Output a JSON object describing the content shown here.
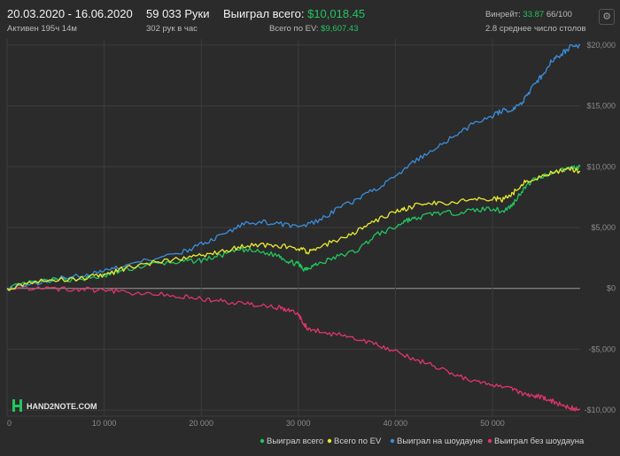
{
  "header": {
    "date_range": "20.03.2020 - 16.06.2020",
    "active_time": "Активен 195ч 14м",
    "hands": "59 033 Руки",
    "hands_per_hour": "302 рук в час",
    "won_label": "Выиграл всего:",
    "won_value": "$10,018.45",
    "ev_label": "Всего по EV:",
    "ev_value": "$9,607.43",
    "winrate_label": "Винрейт:",
    "winrate_value": "33.87",
    "winrate_rest": "66/100",
    "tables": "2.8 среднее число столов",
    "settings_icon": "gear-icon"
  },
  "logo": "HAND2NOTE.COM",
  "chart_data": {
    "type": "line",
    "x_ticks": [
      0,
      10000,
      20000,
      30000,
      40000,
      50000
    ],
    "x_tick_labels": [
      "0",
      "10 000",
      "20 000",
      "30 000",
      "40 000",
      "50 000"
    ],
    "xlim": [
      0,
      59033
    ],
    "ylim": [
      -10500,
      20500
    ],
    "y_ticks": [
      20000,
      15000,
      10000,
      5000,
      0,
      -5000,
      -10000
    ],
    "y_tick_labels": [
      "$20,000",
      "$15,000",
      "$10,000",
      "$5,000",
      "$0",
      "-$5,000",
      "-$10,000"
    ],
    "series": [
      {
        "name": "Выиграл всего",
        "color": "#22c55e",
        "x": [
          0,
          2000,
          5000,
          8000,
          10000,
          12000,
          15000,
          18000,
          20000,
          22000,
          24000,
          26000,
          28000,
          29000,
          30000,
          30500,
          31000,
          32000,
          34000,
          36000,
          38000,
          40000,
          41000,
          42000,
          44000,
          46000,
          48000,
          50000,
          51000,
          52000,
          53000,
          54000,
          56000,
          58000,
          59033
        ],
        "y": [
          0,
          400,
          700,
          800,
          1000,
          1500,
          2000,
          2200,
          2300,
          2700,
          3200,
          3000,
          2700,
          2200,
          2000,
          1600,
          1700,
          2000,
          2600,
          3100,
          4400,
          5000,
          5600,
          5700,
          6200,
          6200,
          6400,
          6600,
          6300,
          6800,
          8000,
          8800,
          9500,
          9900,
          10018
        ]
      },
      {
        "name": "Всего по EV",
        "color": "#eaea30",
        "x": [
          0,
          2000,
          5000,
          8000,
          10000,
          12000,
          15000,
          18000,
          20000,
          22000,
          24000,
          26000,
          28000,
          30000,
          31000,
          32000,
          34000,
          36000,
          38000,
          40000,
          41000,
          42000,
          44000,
          46000,
          48000,
          50000,
          51000,
          52000,
          53000,
          54000,
          56000,
          58000,
          59033
        ],
        "y": [
          0,
          450,
          700,
          850,
          1100,
          1600,
          2100,
          2500,
          2700,
          3000,
          3400,
          3600,
          3500,
          3300,
          3000,
          3300,
          4000,
          4700,
          5600,
          6300,
          6500,
          6800,
          7000,
          7100,
          7300,
          7400,
          7300,
          7700,
          8600,
          9000,
          9500,
          9800,
          9607
        ]
      },
      {
        "name": "Выиграл на шоудауне",
        "color": "#3b8ede",
        "x": [
          0,
          2000,
          5000,
          8000,
          10000,
          12000,
          15000,
          18000,
          20000,
          22000,
          24000,
          26000,
          28000,
          30000,
          32000,
          34000,
          36000,
          38000,
          40000,
          42000,
          44000,
          46000,
          48000,
          50000,
          51000,
          52000,
          53000,
          54000,
          55000,
          56000,
          57000,
          58000,
          59033
        ],
        "y": [
          0,
          300,
          800,
          1100,
          1400,
          1800,
          2400,
          3000,
          3600,
          4300,
          5200,
          5500,
          5300,
          5000,
          5500,
          6500,
          7300,
          8200,
          9200,
          10400,
          11500,
          12500,
          13500,
          14200,
          14600,
          14700,
          15200,
          16400,
          17400,
          18600,
          19200,
          19800,
          20000
        ]
      },
      {
        "name": "Выиграл без шоудауна",
        "color": "#e0356a",
        "x": [
          0,
          2000,
          5000,
          8000,
          10000,
          12000,
          15000,
          18000,
          20000,
          22000,
          24000,
          26000,
          28000,
          29000,
          30000,
          30500,
          31000,
          32000,
          34000,
          36000,
          38000,
          40000,
          42000,
          44000,
          46000,
          48000,
          50000,
          52000,
          53000,
          54000,
          55000,
          56000,
          57000,
          58000,
          59033
        ],
        "y": [
          0,
          50,
          -50,
          -100,
          -150,
          -300,
          -450,
          -650,
          -850,
          -1050,
          -1250,
          -1450,
          -1600,
          -1800,
          -2100,
          -2800,
          -3300,
          -3500,
          -3800,
          -4200,
          -4600,
          -5200,
          -5800,
          -6400,
          -7000,
          -7600,
          -7900,
          -8200,
          -8600,
          -8800,
          -8900,
          -9200,
          -9500,
          -9800,
          -9950
        ]
      }
    ]
  }
}
